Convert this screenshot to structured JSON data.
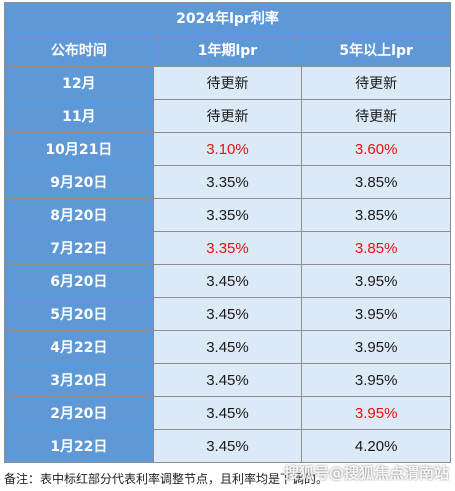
{
  "table": {
    "title": "2024年lpr利率",
    "headers": [
      "公布时间",
      "1年期lpr",
      "5年以上lpr"
    ],
    "rows": [
      {
        "date": "12月",
        "one_year": "待更新",
        "five_year": "待更新",
        "one_red": false,
        "five_red": false
      },
      {
        "date": "11月",
        "one_year": "待更新",
        "five_year": "待更新",
        "one_red": false,
        "five_red": false
      },
      {
        "date": "10月21日",
        "one_year": "3.10%",
        "five_year": "3.60%",
        "one_red": true,
        "five_red": true
      },
      {
        "date": "9月20日",
        "one_year": "3.35%",
        "five_year": "3.85%",
        "one_red": false,
        "five_red": false
      },
      {
        "date": "8月20日",
        "one_year": "3.35%",
        "five_year": "3.85%",
        "one_red": false,
        "five_red": false
      },
      {
        "date": "7月22日",
        "one_year": "3.35%",
        "five_year": "3.85%",
        "one_red": true,
        "five_red": true
      },
      {
        "date": "6月20日",
        "one_year": "3.45%",
        "five_year": "3.95%",
        "one_red": false,
        "five_red": false
      },
      {
        "date": "5月20日",
        "one_year": "3.45%",
        "five_year": "3.95%",
        "one_red": false,
        "five_red": false
      },
      {
        "date": "4月22日",
        "one_year": "3.45%",
        "five_year": "3.95%",
        "one_red": false,
        "five_red": false
      },
      {
        "date": "3月20日",
        "one_year": "3.45%",
        "five_year": "3.95%",
        "one_red": false,
        "five_red": false
      },
      {
        "date": "2月20日",
        "one_year": "3.45%",
        "five_year": "3.95%",
        "one_red": false,
        "five_red": true
      },
      {
        "date": "1月22日",
        "one_year": "3.45%",
        "five_year": "4.20%",
        "one_red": false,
        "five_red": false
      }
    ]
  },
  "footnote": "备注：表中标红部分代表利率调整节点，且利率均是下调的。",
  "watermark": "搜狐号@搜狐焦点渭南站",
  "colors": {
    "header_bg": "#5f98d6",
    "cell_bg": "#dce9f6",
    "highlight_red": "#e8100e",
    "border": "#8e8e8e"
  }
}
